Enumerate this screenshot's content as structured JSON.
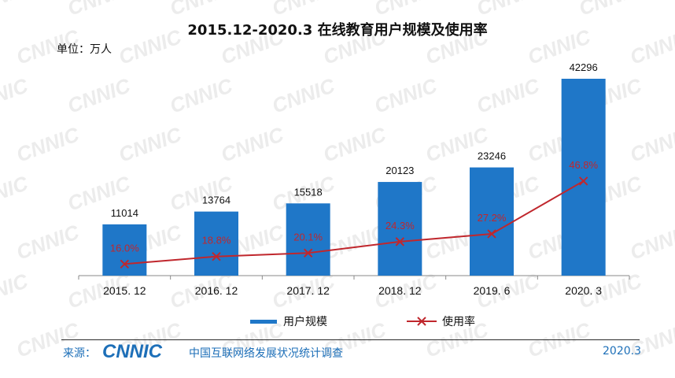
{
  "chart_data": {
    "type": "bar",
    "title": "2015.12-2020.3 在线教育用户规模及使用率",
    "unit_label": "单位：万人",
    "categories": [
      "2015. 12",
      "2016. 12",
      "2017. 12",
      "2018. 12",
      "2019. 6",
      "2020. 3"
    ],
    "series": [
      {
        "name": "用户规模",
        "type": "bar",
        "values": [
          11014,
          13764,
          15518,
          20123,
          23246,
          42296
        ],
        "color": "#1f77c8"
      },
      {
        "name": "使用率",
        "type": "line",
        "values": [
          16.0,
          18.8,
          20.1,
          24.3,
          27.2,
          46.8
        ],
        "value_labels": [
          "16.0%",
          "18.8%",
          "20.1%",
          "24.3%",
          "27.2%",
          "46.8%"
        ],
        "color": "#c0272d"
      }
    ],
    "legend_position": "bottom",
    "grid": false
  },
  "footer": {
    "source_label": "来源：",
    "logo_text": "CNNIC",
    "center_name": "中国互联网络发展状况统计调查",
    "date": "2020.3"
  },
  "watermark_text": "CNNIC"
}
